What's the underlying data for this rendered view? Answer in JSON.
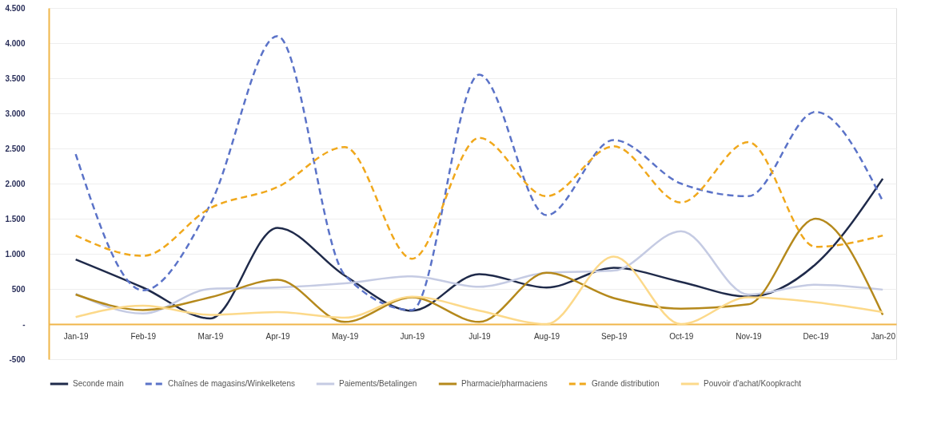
{
  "chart_data": {
    "type": "line",
    "categories": [
      "Jan-19",
      "Feb-19",
      "Mar-19",
      "Apr-19",
      "May-19",
      "Jun-19",
      "Jul-19",
      "Aug-19",
      "Sep-19",
      "Oct-19",
      "Nov-19",
      "Dec-19",
      "Jan-20"
    ],
    "series": [
      {
        "name": "Seconde main",
        "color": "#1f2a4a",
        "line_style": "solid",
        "values": [
          920,
          520,
          80,
          1370,
          690,
          190,
          710,
          520,
          800,
          600,
          390,
          850,
          2070
        ]
      },
      {
        "name": "Chaînes de magasins/Winkelketens",
        "color": "#5b73c8",
        "line_style": "dashed",
        "values": [
          2420,
          480,
          1700,
          4100,
          700,
          200,
          3550,
          1550,
          2620,
          2000,
          1820,
          3020,
          1750
        ]
      },
      {
        "name": "Paiements/Betalingen",
        "color": "#c5cbe3",
        "line_style": "solid",
        "values": [
          430,
          150,
          500,
          520,
          580,
          680,
          530,
          730,
          760,
          1320,
          420,
          560,
          490
        ]
      },
      {
        "name": "Pharmacie/pharmaciens",
        "color": "#b5891c",
        "line_style": "solid",
        "values": [
          420,
          200,
          380,
          630,
          30,
          380,
          30,
          730,
          370,
          220,
          280,
          1500,
          130
        ]
      },
      {
        "name": "Grande distribution",
        "color": "#f0a81c",
        "line_style": "dashed",
        "values": [
          1260,
          970,
          1650,
          1950,
          2520,
          930,
          2650,
          1820,
          2530,
          1730,
          2590,
          1100,
          1260
        ]
      },
      {
        "name": "Pouvoir d'achat/Koopkracht",
        "color": "#fcd98a",
        "line_style": "solid",
        "values": [
          100,
          260,
          130,
          170,
          90,
          390,
          190,
          0,
          960,
          0,
          380,
          310,
          170
        ]
      }
    ],
    "ylim": [
      -500,
      4500
    ],
    "yticks": [
      {
        "value": -500,
        "label": "-500"
      },
      {
        "value": 0,
        "label": "-"
      },
      {
        "value": 500,
        "label": "500"
      },
      {
        "value": 1000,
        "label": "1.000"
      },
      {
        "value": 1500,
        "label": "1.500"
      },
      {
        "value": 2000,
        "label": "2.000"
      },
      {
        "value": 2500,
        "label": "2.500"
      },
      {
        "value": 3000,
        "label": "3.000"
      },
      {
        "value": 3500,
        "label": "3.500"
      },
      {
        "value": 4000,
        "label": "4.000"
      },
      {
        "value": 4500,
        "label": "4.500"
      }
    ],
    "grid": "y",
    "legend": "bottom",
    "marker": "none"
  }
}
